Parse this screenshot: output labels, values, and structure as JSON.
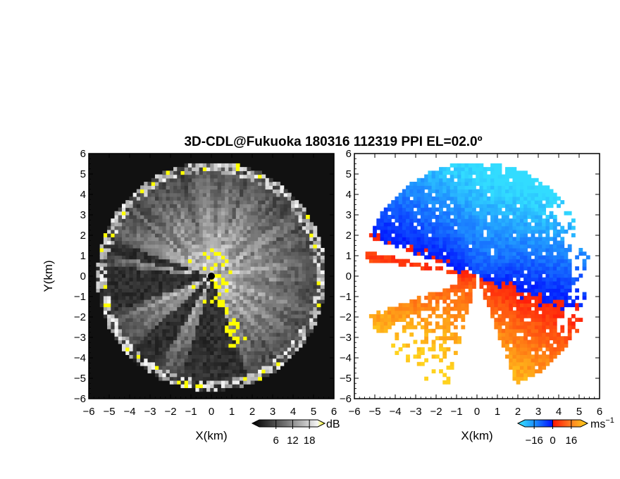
{
  "figure": {
    "title": "3D-CDL@Fukuoka 180316 112319 PPI EL=02.0º"
  },
  "chart_data": [
    {
      "type": "heatmap",
      "panel": "left",
      "variable": "backscatter intensity (radar PPI scan)",
      "xlabel": "X(km)",
      "ylabel": "Y(km)",
      "xlim": [
        -6,
        6
      ],
      "ylim": [
        -6,
        6
      ],
      "x_ticks": [
        -6,
        -5,
        -4,
        -3,
        -2,
        -1,
        0,
        1,
        2,
        3,
        4,
        5,
        6
      ],
      "y_ticks": [
        -6,
        -5,
        -4,
        -3,
        -2,
        -1,
        0,
        1,
        2,
        3,
        4,
        5,
        6
      ],
      "range_km": 5.6,
      "colorscale": "grayscale with yellow for highest values",
      "colorbar": {
        "unit": "dB",
        "ticks": [
          6,
          12,
          18
        ],
        "range": [
          0,
          21
        ]
      },
      "colors": {
        "background": "#141414",
        "high": "#ffff00",
        "low": "#0a0a0a"
      }
    },
    {
      "type": "heatmap",
      "panel": "right",
      "variable": "radial (Doppler) velocity",
      "xlabel": "X(km)",
      "xlim": [
        -6,
        6
      ],
      "ylim": [
        -6,
        6
      ],
      "x_ticks": [
        -6,
        -5,
        -4,
        -3,
        -2,
        -1,
        0,
        1,
        2,
        3,
        4,
        5,
        6
      ],
      "y_ticks": [
        -6,
        -5,
        -4,
        -3,
        -2,
        -1,
        0,
        1,
        2,
        3,
        4,
        5,
        6
      ],
      "range_km": 5.6,
      "colorscale": "diverging: cyan-blue (negative) to red-orange-yellow (positive)",
      "colorbar": {
        "unit": "ms",
        "unit_exponent": "−1",
        "ticks": [
          "−16",
          "0",
          "16"
        ],
        "range": [
          -24,
          24
        ]
      },
      "colors": {
        "negative_far": "#1a3cff",
        "negative_near": "#33d6ff",
        "zero_neg": "#0010ff",
        "zero_pos": "#ff1a00",
        "positive_near": "#ff6a1a",
        "positive_far": "#ffcc11"
      }
    }
  ]
}
